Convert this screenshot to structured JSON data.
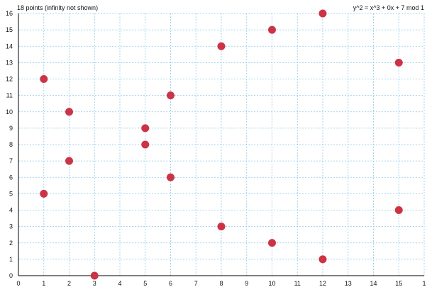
{
  "chart_data": {
    "type": "scatter",
    "title": "18 points (infinity not shown)",
    "subtitle": "y^2 = x^3 + 0x + 7 mod 1",
    "xlabel": "",
    "ylabel": "",
    "xlim": [
      0,
      16
    ],
    "ylim": [
      0,
      16
    ],
    "grid": true,
    "x_ticks": [
      "0",
      "1",
      "2",
      "3",
      "4",
      "5",
      "6",
      "7",
      "8",
      "9",
      "10",
      "11",
      "12",
      "13",
      "14",
      "15",
      "1"
    ],
    "y_ticks": [
      "0",
      "1",
      "2",
      "3",
      "4",
      "5",
      "6",
      "7",
      "8",
      "9",
      "10",
      "11",
      "12",
      "13",
      "14",
      "15",
      "16"
    ],
    "points": [
      {
        "x": 1,
        "y": 5
      },
      {
        "x": 1,
        "y": 12
      },
      {
        "x": 2,
        "y": 7
      },
      {
        "x": 2,
        "y": 10
      },
      {
        "x": 3,
        "y": 0
      },
      {
        "x": 5,
        "y": 8
      },
      {
        "x": 5,
        "y": 9
      },
      {
        "x": 6,
        "y": 6
      },
      {
        "x": 6,
        "y": 11
      },
      {
        "x": 8,
        "y": 3
      },
      {
        "x": 8,
        "y": 14
      },
      {
        "x": 10,
        "y": 2
      },
      {
        "x": 10,
        "y": 15
      },
      {
        "x": 12,
        "y": 1
      },
      {
        "x": 12,
        "y": 16
      },
      {
        "x": 15,
        "y": 4
      },
      {
        "x": 15,
        "y": 13
      }
    ],
    "colors": {
      "point": "#cc3344",
      "grid": "#8ec9e6",
      "axis": "#000000"
    }
  }
}
